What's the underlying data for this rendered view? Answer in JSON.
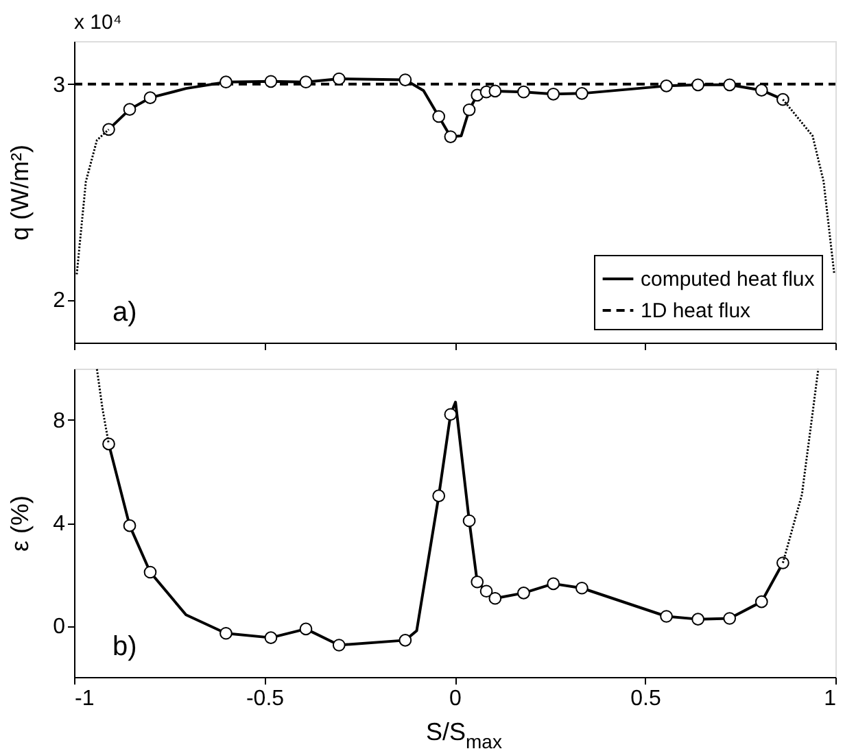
{
  "chart_data": [
    {
      "type": "line",
      "ylabel": "q (W/m²)",
      "xlim": [
        -1,
        1
      ],
      "xticks": [
        -1,
        -0.5,
        0,
        0.5,
        1
      ],
      "ylim": [
        1.8,
        3.2
      ],
      "yticks": [
        2,
        3
      ],
      "tick_labels": "y",
      "legend": "bottom right",
      "grid": false,
      "annotations": [
        "x 10⁴",
        "a)"
      ],
      "series": [
        {
          "name": "computed heat flux",
          "line_style": "solid",
          "marker": "none",
          "color": "#000000",
          "x": [
            -0.909,
            -0.854,
            -0.8,
            -0.706,
            -0.601,
            -0.483,
            -0.391,
            -0.304,
            -0.13,
            -0.082,
            -0.042,
            -0.011,
            0.017,
            0.038,
            0.059,
            0.083,
            0.106,
            0.181,
            0.259,
            0.334,
            0.556,
            0.639,
            0.722,
            0.806,
            0.862
          ],
          "values": [
            2.79,
            2.883,
            2.937,
            2.98,
            3.01,
            3.013,
            3.01,
            3.025,
            3.02,
            2.97,
            2.85,
            2.756,
            2.76,
            2.881,
            2.949,
            2.964,
            2.968,
            2.964,
            2.954,
            2.957,
            2.992,
            2.997,
            2.997,
            2.972,
            2.929
          ]
        },
        {
          "name": "1D heat flux",
          "line_style": "dashed",
          "marker": "none",
          "color": "#000000",
          "x": [
            -1,
            1
          ],
          "values": [
            3,
            3
          ]
        },
        {
          "type": "scatter",
          "marker": "circle",
          "color": "#000000",
          "x": [
            -0.909,
            -0.854,
            -0.8,
            -0.601,
            -0.483,
            -0.391,
            -0.304,
            -0.13,
            -0.042,
            -0.011,
            0.038,
            0.059,
            0.083,
            0.106,
            0.181,
            0.259,
            0.334,
            0.556,
            0.639,
            0.722,
            0.806,
            0.862
          ],
          "values": [
            2.79,
            2.883,
            2.937,
            3.01,
            3.013,
            3.01,
            3.025,
            3.02,
            2.85,
            2.756,
            2.881,
            2.949,
            2.964,
            2.968,
            2.964,
            2.954,
            2.957,
            2.992,
            2.997,
            2.997,
            2.972,
            2.929
          ]
        },
        {
          "line_style": "dotted",
          "marker": "none",
          "color": "#000000",
          "x": [
            -0.993,
            -0.969,
            -0.94,
            -0.909
          ],
          "values": [
            2.117,
            2.548,
            2.74,
            2.79
          ]
        },
        {
          "line_style": "dotted",
          "marker": "none",
          "color": "#000000",
          "x": [
            0.862,
            0.94,
            0.969,
            0.997
          ],
          "values": [
            2.929,
            2.76,
            2.548,
            2.117
          ]
        }
      ]
    },
    {
      "type": "line",
      "ylabel": "ε (%)",
      "xlabel": "S/S$_{max}$",
      "xlim": [
        -1,
        1
      ],
      "xticks": [
        -1,
        -0.5,
        0,
        0.5,
        1
      ],
      "ylim": [
        -2,
        10
      ],
      "yticks": [
        0,
        4,
        8
      ],
      "grid": false,
      "annotations": [
        "b)"
      ],
      "series": [
        {
          "line_style": "solid",
          "marker": "none",
          "color": "#000000",
          "x": [
            -0.909,
            -0.854,
            -0.8,
            -0.706,
            -0.601,
            -0.483,
            -0.391,
            -0.304,
            -0.13,
            -0.1,
            -0.042,
            -0.011,
            0.002,
            0.038,
            0.059,
            0.083,
            0.106,
            0.181,
            0.259,
            0.334,
            0.556,
            0.639,
            0.722,
            0.806,
            0.862
          ],
          "values": [
            7.07,
            3.89,
            2.08,
            0.42,
            -0.3,
            -0.47,
            -0.13,
            -0.76,
            -0.57,
            -0.2,
            5.05,
            8.22,
            8.7,
            4.08,
            1.7,
            1.34,
            1.06,
            1.27,
            1.63,
            1.46,
            0.36,
            0.25,
            0.28,
            0.93,
            2.44
          ]
        },
        {
          "type": "scatter",
          "marker": "circle",
          "color": "#000000",
          "x": [
            -0.909,
            -0.854,
            -0.8,
            -0.601,
            -0.483,
            -0.391,
            -0.304,
            -0.13,
            -0.042,
            -0.011,
            0.038,
            0.059,
            0.083,
            0.106,
            0.181,
            0.259,
            0.334,
            0.556,
            0.639,
            0.722,
            0.806,
            0.862
          ],
          "values": [
            7.07,
            3.89,
            2.08,
            -0.3,
            -0.47,
            -0.13,
            -0.76,
            -0.57,
            5.05,
            8.22,
            4.08,
            1.7,
            1.34,
            1.06,
            1.27,
            1.63,
            1.46,
            0.36,
            0.25,
            0.28,
            0.93,
            2.44
          ]
        },
        {
          "line_style": "dotted",
          "marker": "none",
          "color": "#000000",
          "x": [
            -0.94,
            -0.926,
            -0.909
          ],
          "values": [
            9.98,
            8.5,
            7.07
          ]
        },
        {
          "line_style": "dotted",
          "marker": "none",
          "color": "#000000",
          "x": [
            0.862,
            0.912,
            0.955
          ],
          "values": [
            2.44,
            5.1,
            9.98
          ]
        }
      ]
    }
  ]
}
